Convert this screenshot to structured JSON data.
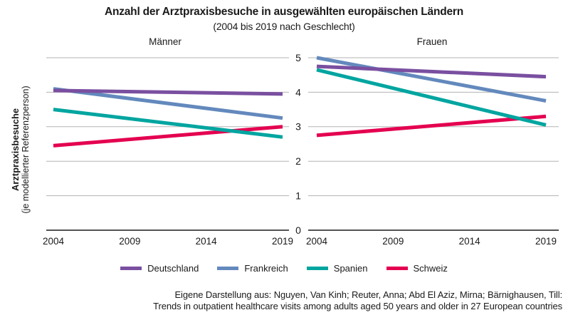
{
  "title": "Anzahl der Arztpraxisbesuche in ausgewählten europäischen Ländern",
  "subtitle": "(2004 bis 2019 nach Geschlecht)",
  "y_axis": {
    "title": "Arztpraxisbesuche",
    "subtitle": "(je modellierter Referenzperson)"
  },
  "source": {
    "line1": "Eigene Darstellung aus: Nguyen, Van Kinh; Reuter, Anna; Abd El Aziz, Mirna; Bärnighausen, Till:",
    "line2": "Trends in outpatient healthcare visits among adults aged 50 years and older in 27 European countries"
  },
  "colors": {
    "deutschland": "#7A4FA0",
    "frankreich": "#6389BD",
    "spanien": "#00A5A0",
    "schweiz": "#E40050",
    "gridline": "#b3b3b3",
    "axis": "#1a1a1a"
  },
  "chart_data": {
    "type": "line",
    "x": [
      2004,
      2019
    ],
    "x_ticks": [
      "2004",
      "2009",
      "2014",
      "2019"
    ],
    "y_ticks": [
      "0",
      "1",
      "2",
      "3",
      "4",
      "5"
    ],
    "ylim": [
      0,
      5
    ],
    "grid": "horizontal",
    "legend_position": "bottom",
    "panels": [
      {
        "title": "Männer",
        "series": [
          {
            "name": "Deutschland",
            "color": "#7A4FA0",
            "values": [
              4.05,
              3.95
            ]
          },
          {
            "name": "Frankreich",
            "color": "#6389BD",
            "values": [
              4.1,
              3.25
            ]
          },
          {
            "name": "Spanien",
            "color": "#00A5A0",
            "values": [
              3.5,
              2.7
            ]
          },
          {
            "name": "Schweiz",
            "color": "#E40050",
            "values": [
              2.45,
              3.0
            ]
          }
        ]
      },
      {
        "title": "Frauen",
        "series": [
          {
            "name": "Deutschland",
            "color": "#7A4FA0",
            "values": [
              4.75,
              4.45
            ]
          },
          {
            "name": "Frankreich",
            "color": "#6389BD",
            "values": [
              5.0,
              3.75
            ]
          },
          {
            "name": "Spanien",
            "color": "#00A5A0",
            "values": [
              4.65,
              3.05
            ]
          },
          {
            "name": "Schweiz",
            "color": "#E40050",
            "values": [
              2.75,
              3.3
            ]
          }
        ]
      }
    ],
    "legend": [
      {
        "label": "Deutschland",
        "color": "#7A4FA0"
      },
      {
        "label": "Frankreich",
        "color": "#6389BD"
      },
      {
        "label": "Spanien",
        "color": "#00A5A0"
      },
      {
        "label": "Schweiz",
        "color": "#E40050"
      }
    ]
  }
}
